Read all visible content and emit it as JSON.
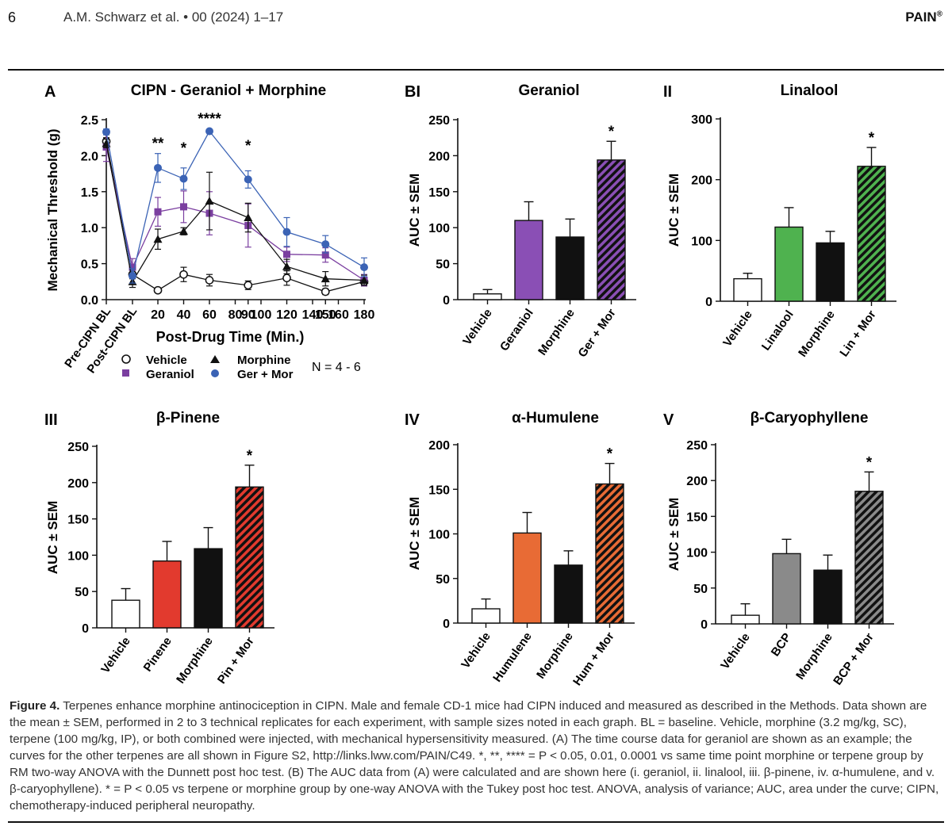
{
  "header": {
    "page_number": "6",
    "authors": "A.M. Schwarz et al. • 00 (2024) 1–17",
    "journal": "PAIN",
    "journal_mark": "®"
  },
  "panelA": {
    "letter": "A",
    "title": "CIPN - Geraniol + Morphine",
    "ylabel": "Mechanical Threshold (g)",
    "xlabel": "Post-Drug Time (Min.)",
    "n_label": "N = 4 - 6",
    "legend": {
      "vehicle": "Vehicle",
      "morphine": "Morphine",
      "geraniol": "Geraniol",
      "germor": "Ger + Mor"
    },
    "stars": [
      "**",
      "*",
      "****",
      "*"
    ]
  },
  "chart_data": [
    {
      "type": "line",
      "title": "CIPN - Geraniol + Morphine",
      "xlabel": "Post-Drug Time (Min.)",
      "ylabel": "Mechanical Threshold (g)",
      "ylim": [
        0,
        2.5
      ],
      "yticks": [
        "0.0",
        "0.5",
        "1.0",
        "1.5",
        "2.0",
        "2.5"
      ],
      "x": [
        "Pre-CIPN BL",
        "Post-CIPN BL",
        "20",
        "40",
        "60",
        "80",
        "90",
        "100",
        "120",
        "140",
        "150",
        "160",
        "180"
      ],
      "series": [
        {
          "name": "Vehicle",
          "color": "#111111",
          "x": [
            "Pre-CIPN BL",
            "Post-CIPN BL",
            "20",
            "40",
            "60",
            "90",
            "120",
            "150",
            "180"
          ],
          "values": [
            2.2,
            0.35,
            0.13,
            0.35,
            0.27,
            0.2,
            0.3,
            0.11,
            0.25
          ],
          "errors": [
            0.05,
            0.06,
            0.03,
            0.1,
            0.08,
            0.06,
            0.1,
            0.04,
            0.06
          ]
        },
        {
          "name": "Geraniol",
          "color": "#7b3fa0",
          "x": [
            "Pre-CIPN BL",
            "Post-CIPN BL",
            "20",
            "40",
            "60",
            "90",
            "120",
            "150",
            "180"
          ],
          "values": [
            2.12,
            0.45,
            1.22,
            1.29,
            1.2,
            1.03,
            0.63,
            0.62,
            0.27
          ],
          "errors": [
            0.2,
            0.12,
            0.2,
            0.22,
            0.3,
            0.3,
            0.1,
            0.1,
            0.08
          ]
        },
        {
          "name": "Morphine",
          "color": "#111111",
          "x": [
            "Pre-CIPN BL",
            "Post-CIPN BL",
            "20",
            "40",
            "60",
            "90",
            "120",
            "150",
            "180"
          ],
          "values": [
            2.17,
            0.25,
            0.84,
            0.95,
            1.37,
            1.14,
            0.46,
            0.29,
            0.27
          ],
          "errors": [
            0.06,
            0.08,
            0.14,
            0.05,
            0.4,
            0.2,
            0.1,
            0.1,
            0.07
          ]
        },
        {
          "name": "Ger + Mor",
          "color": "#3b63b5",
          "x": [
            "Pre-CIPN BL",
            "Post-CIPN BL",
            "20",
            "40",
            "60",
            "90",
            "120",
            "150",
            "180"
          ],
          "values": [
            2.33,
            0.33,
            1.83,
            1.68,
            2.34,
            1.67,
            0.94,
            0.77,
            0.45
          ],
          "errors": [
            0.04,
            0.1,
            0.2,
            0.15,
            0.02,
            0.12,
            0.2,
            0.12,
            0.13
          ]
        }
      ],
      "annotations": [
        {
          "x": "20",
          "text": "**"
        },
        {
          "x": "40",
          "text": "*"
        },
        {
          "x": "60",
          "text": "****"
        },
        {
          "x": "90",
          "text": "*"
        }
      ]
    },
    {
      "type": "bar",
      "panel": "BI",
      "title": "Geraniol",
      "ylabel": "AUC ± SEM",
      "ylim": [
        0,
        250
      ],
      "yticks": [
        "0",
        "50",
        "100",
        "150",
        "200",
        "250"
      ],
      "categories": [
        "Vehicle",
        "Geraniol",
        "Morphine",
        "Ger + Mor"
      ],
      "values": [
        8,
        110,
        87,
        194
      ],
      "errors": [
        6,
        26,
        25,
        26
      ],
      "color": "#8a4fb5",
      "significance": [
        "",
        "",
        "",
        "*"
      ]
    },
    {
      "type": "bar",
      "panel": "II",
      "title": "Linalool",
      "ylabel": "AUC ± SEM",
      "ylim": [
        0,
        300
      ],
      "yticks": [
        "0",
        "100",
        "200",
        "300"
      ],
      "categories": [
        "Vehicle",
        "Linalool",
        "Morphine",
        "Lin + Mor"
      ],
      "values": [
        37,
        122,
        96,
        222
      ],
      "errors": [
        9,
        32,
        19,
        31
      ],
      "color": "#4fb24f",
      "significance": [
        "",
        "",
        "",
        "*"
      ]
    },
    {
      "type": "bar",
      "panel": "III",
      "title": "β-Pinene",
      "ylabel": "AUC ± SEM",
      "ylim": [
        0,
        250
      ],
      "yticks": [
        "0",
        "50",
        "100",
        "150",
        "200",
        "250"
      ],
      "categories": [
        "Vehicle",
        "Pinene",
        "Morphine",
        "Pin + Mor"
      ],
      "values": [
        38,
        92,
        109,
        194
      ],
      "errors": [
        16,
        27,
        29,
        30
      ],
      "color": "#e23a2e",
      "significance": [
        "",
        "",
        "",
        "*"
      ]
    },
    {
      "type": "bar",
      "panel": "IV",
      "title": "α-Humulene",
      "ylabel": "AUC ± SEM",
      "ylim": [
        0,
        200
      ],
      "yticks": [
        "0",
        "50",
        "100",
        "150",
        "200"
      ],
      "categories": [
        "Vehicle",
        "Humulene",
        "Morphine",
        "Hum + Mor"
      ],
      "values": [
        16,
        101,
        65,
        156
      ],
      "errors": [
        11,
        23,
        16,
        23
      ],
      "color": "#e86b35",
      "significance": [
        "",
        "",
        "",
        "*"
      ]
    },
    {
      "type": "bar",
      "panel": "V",
      "title": "β-Caryophyllene",
      "ylabel": "AUC ± SEM",
      "ylim": [
        0,
        250
      ],
      "yticks": [
        "0",
        "50",
        "100",
        "150",
        "200",
        "250"
      ],
      "categories": [
        "Vehicle",
        "BCP",
        "Morphine",
        "BCP + Mor"
      ],
      "values": [
        12,
        98,
        75,
        185
      ],
      "errors": [
        16,
        20,
        21,
        27
      ],
      "color": "#8a8a8a",
      "significance": [
        "",
        "",
        "",
        "*"
      ]
    }
  ],
  "caption": {
    "label": "Figure 4.",
    "text": " Terpenes enhance morphine antinociception in CIPN. Male and female CD-1 mice had CIPN induced and measured as described in the Methods. Data shown are the mean ± SEM, performed in 2 to 3 technical replicates for each experiment, with sample sizes noted in each graph. BL = baseline. Vehicle, morphine (3.2 mg/kg, SC), terpene (100 mg/kg, IP), or both combined were injected, with mechanical hypersensitivity measured. (A) The time course data for geraniol are shown as an example; the curves for the other terpenes are all shown in Figure S2, http://links.lww.com/PAIN/C49. *, **, **** = P < 0.05, 0.01, 0.0001 vs same time point morphine or terpene group by RM two-way ANOVA with the Dunnett post hoc test. (B) The AUC data from (A) were calculated and are shown here (i. geraniol, ii. linalool, iii. β-pinene, iv. α-humulene, and v. β-caryophyllene). * = P < 0.05 vs terpene or morphine group by one-way ANOVA with the Tukey post hoc test. ANOVA, analysis of variance; AUC, area under the curve; CIPN, chemotherapy-induced peripheral neuropathy."
  }
}
